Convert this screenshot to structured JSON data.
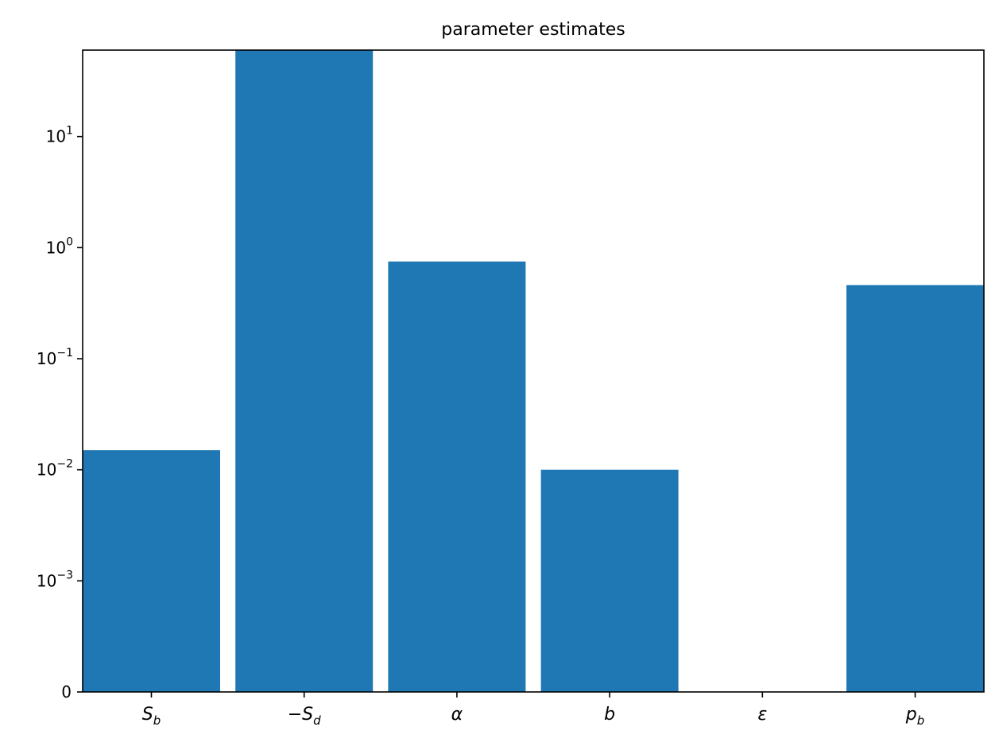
{
  "chart_data": {
    "type": "bar",
    "title": "parameter estimates",
    "xlabel": "",
    "ylabel": "",
    "yscale": "symlog",
    "linthresh": 0.001,
    "ylim": [
      0,
      60
    ],
    "grid": false,
    "categories": [
      {
        "base": "S",
        "sub": "b",
        "prefix": ""
      },
      {
        "base": "S",
        "sub": "d",
        "prefix": "−"
      },
      {
        "base": "α",
        "sub": "",
        "prefix": ""
      },
      {
        "base": "b",
        "sub": "",
        "prefix": ""
      },
      {
        "base": "ε",
        "sub": "",
        "prefix": ""
      },
      {
        "base": "p",
        "sub": "b",
        "prefix": ""
      }
    ],
    "values": [
      0.015,
      60,
      0.75,
      0.01,
      0,
      0.46
    ],
    "bar_color": "#1f77b4",
    "yticks": [
      {
        "value": 0,
        "base": "0",
        "exp": ""
      },
      {
        "value": 0.001,
        "base": "10",
        "exp": "−3"
      },
      {
        "value": 0.01,
        "base": "10",
        "exp": "−2"
      },
      {
        "value": 0.1,
        "base": "10",
        "exp": "−1"
      },
      {
        "value": 1,
        "base": "10",
        "exp": "0"
      },
      {
        "value": 10,
        "base": "10",
        "exp": "1"
      }
    ]
  }
}
